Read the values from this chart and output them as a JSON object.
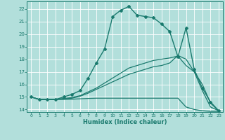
{
  "background_color": "#b2dfdb",
  "grid_color": "#ffffff",
  "line_color": "#1a7a6e",
  "xlabel": "Humidex (Indice chaleur)",
  "xlim": [
    -0.5,
    23.5
  ],
  "ylim": [
    13.8,
    22.6
  ],
  "yticks": [
    14,
    15,
    16,
    17,
    18,
    19,
    20,
    21,
    22
  ],
  "xticks": [
    0,
    1,
    2,
    3,
    4,
    5,
    6,
    7,
    8,
    9,
    10,
    11,
    12,
    13,
    14,
    15,
    16,
    17,
    18,
    19,
    20,
    21,
    22,
    23
  ],
  "series": [
    {
      "x": [
        0,
        1,
        2,
        3,
        4,
        5,
        6,
        7,
        8,
        9,
        10,
        11,
        12,
        13,
        14,
        15,
        16,
        17,
        18,
        19,
        20,
        21,
        22,
        23
      ],
      "y": [
        15.0,
        14.8,
        14.8,
        14.8,
        15.0,
        15.2,
        15.5,
        16.5,
        17.7,
        18.8,
        21.4,
        21.9,
        22.2,
        21.5,
        21.4,
        21.3,
        20.8,
        20.2,
        18.2,
        20.5,
        17.2,
        15.7,
        14.6,
        13.9
      ],
      "marker": "D",
      "markersize": 2.0,
      "linewidth": 1.0,
      "has_marker": true
    },
    {
      "x": [
        0,
        1,
        2,
        3,
        4,
        5,
        6,
        7,
        8,
        9,
        10,
        11,
        12,
        13,
        14,
        15,
        16,
        17,
        18,
        19,
        20,
        21,
        22,
        23
      ],
      "y": [
        15.0,
        14.8,
        14.8,
        14.8,
        14.85,
        14.9,
        15.05,
        15.3,
        15.6,
        15.9,
        16.2,
        16.5,
        16.8,
        17.0,
        17.2,
        17.4,
        17.5,
        17.7,
        18.3,
        18.0,
        17.0,
        15.5,
        14.2,
        13.9
      ],
      "marker": null,
      "markersize": 0,
      "linewidth": 0.9,
      "has_marker": false
    },
    {
      "x": [
        0,
        1,
        2,
        3,
        4,
        5,
        6,
        7,
        8,
        9,
        10,
        11,
        12,
        13,
        14,
        15,
        16,
        17,
        18,
        19,
        20,
        21,
        22,
        23
      ],
      "y": [
        15.0,
        14.8,
        14.8,
        14.8,
        14.8,
        14.82,
        14.85,
        14.88,
        14.9,
        14.9,
        14.9,
        14.9,
        14.9,
        14.9,
        14.9,
        14.9,
        14.9,
        14.9,
        14.9,
        14.2,
        14.0,
        13.9,
        13.85,
        13.85
      ],
      "marker": null,
      "markersize": 0,
      "linewidth": 0.9,
      "has_marker": false
    },
    {
      "x": [
        0,
        1,
        2,
        3,
        4,
        5,
        6,
        7,
        8,
        9,
        10,
        11,
        12,
        13,
        14,
        15,
        16,
        17,
        18,
        19,
        20,
        21,
        22,
        23
      ],
      "y": [
        15.0,
        14.8,
        14.8,
        14.8,
        14.88,
        14.95,
        15.1,
        15.4,
        15.7,
        16.1,
        16.5,
        16.9,
        17.3,
        17.5,
        17.7,
        17.9,
        18.0,
        18.1,
        18.25,
        17.5,
        17.0,
        16.0,
        14.5,
        13.9
      ],
      "marker": null,
      "markersize": 0,
      "linewidth": 0.9,
      "has_marker": false
    }
  ]
}
